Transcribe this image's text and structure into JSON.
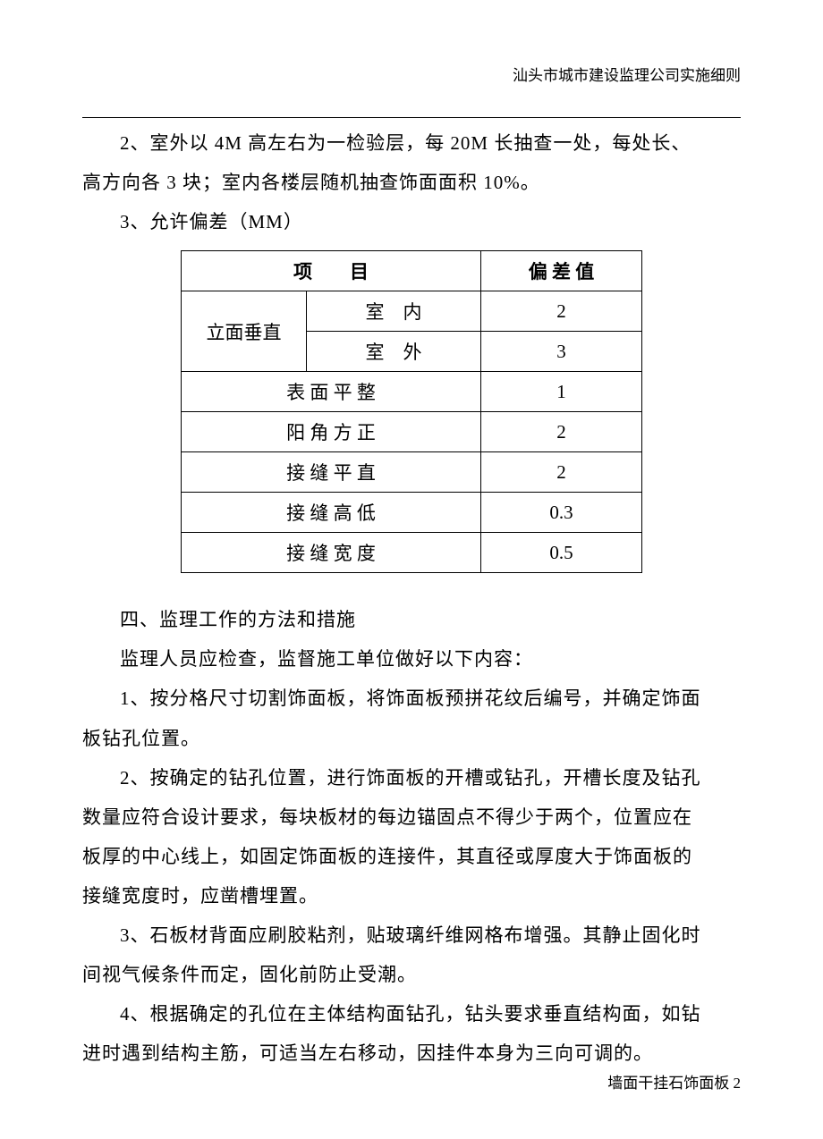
{
  "header": {
    "company": "汕头市城市建设监理公司实施细则"
  },
  "paragraphs": {
    "p1": "2、室外以 4M 高左右为一检验层，每 20M 长抽查一处，每处长、",
    "p1_cont": "高方向各 3 块；室内各楼层随机抽查饰面面积 10%。",
    "p2": "3、允许偏差（MM）",
    "p3": "四、监理工作的方法和措施",
    "p4": "监理人员应检查，监督施工单位做好以下内容：",
    "p5": "1、按分格尺寸切割饰面板，将饰面板预拼花纹后编号，并确定饰面",
    "p5_cont": "板钻孔位置。",
    "p6": "2、按确定的钻孔位置，进行饰面板的开槽或钻孔，开槽长度及钻孔",
    "p6_cont1": "数量应符合设计要求，每块板材的每边锚固点不得少于两个，位置应在",
    "p6_cont2": "板厚的中心线上，如固定饰面板的连接件，其直径或厚度大于饰面板的",
    "p6_cont3": "接缝宽度时，应凿槽埋置。",
    "p7": "3、石板材背面应刷胶粘剂，贴玻璃纤维网格布增强。其静止固化时",
    "p7_cont": "间视气候条件而定，固化前防止受潮。",
    "p8": "4、根据确定的孔位在主体结构面钻孔，钻头要求垂直结构面，如钻",
    "p8_cont": "进时遇到结构主筋，可适当左右移动，因挂件本身为三向可调的。"
  },
  "table": {
    "header_item": "项　　目",
    "header_value": "偏 差 值",
    "rows": {
      "r1_merged": "立面垂直",
      "r1a_item": "室　内",
      "r1a_value": "2",
      "r1b_item": "室　外",
      "r1b_value": "3",
      "r2_item": "表 面 平 整",
      "r2_value": "1",
      "r3_item": "阳 角 方 正",
      "r3_value": "2",
      "r4_item": "接 缝 平 直",
      "r4_value": "2",
      "r5_item": "接 缝 高 低",
      "r5_value": "0.3",
      "r6_item": "接 缝 宽 度",
      "r6_value": "0.5"
    }
  },
  "footer": {
    "text": "墙面干挂石饰面板  2"
  },
  "styles": {
    "background_color": "#ffffff",
    "text_color": "#000000",
    "border_color": "#000000",
    "body_fontsize_pt": 16,
    "header_fontsize_pt": 13,
    "footer_fontsize_pt": 13,
    "line_height": 2.1,
    "font_family": "SimSun"
  }
}
